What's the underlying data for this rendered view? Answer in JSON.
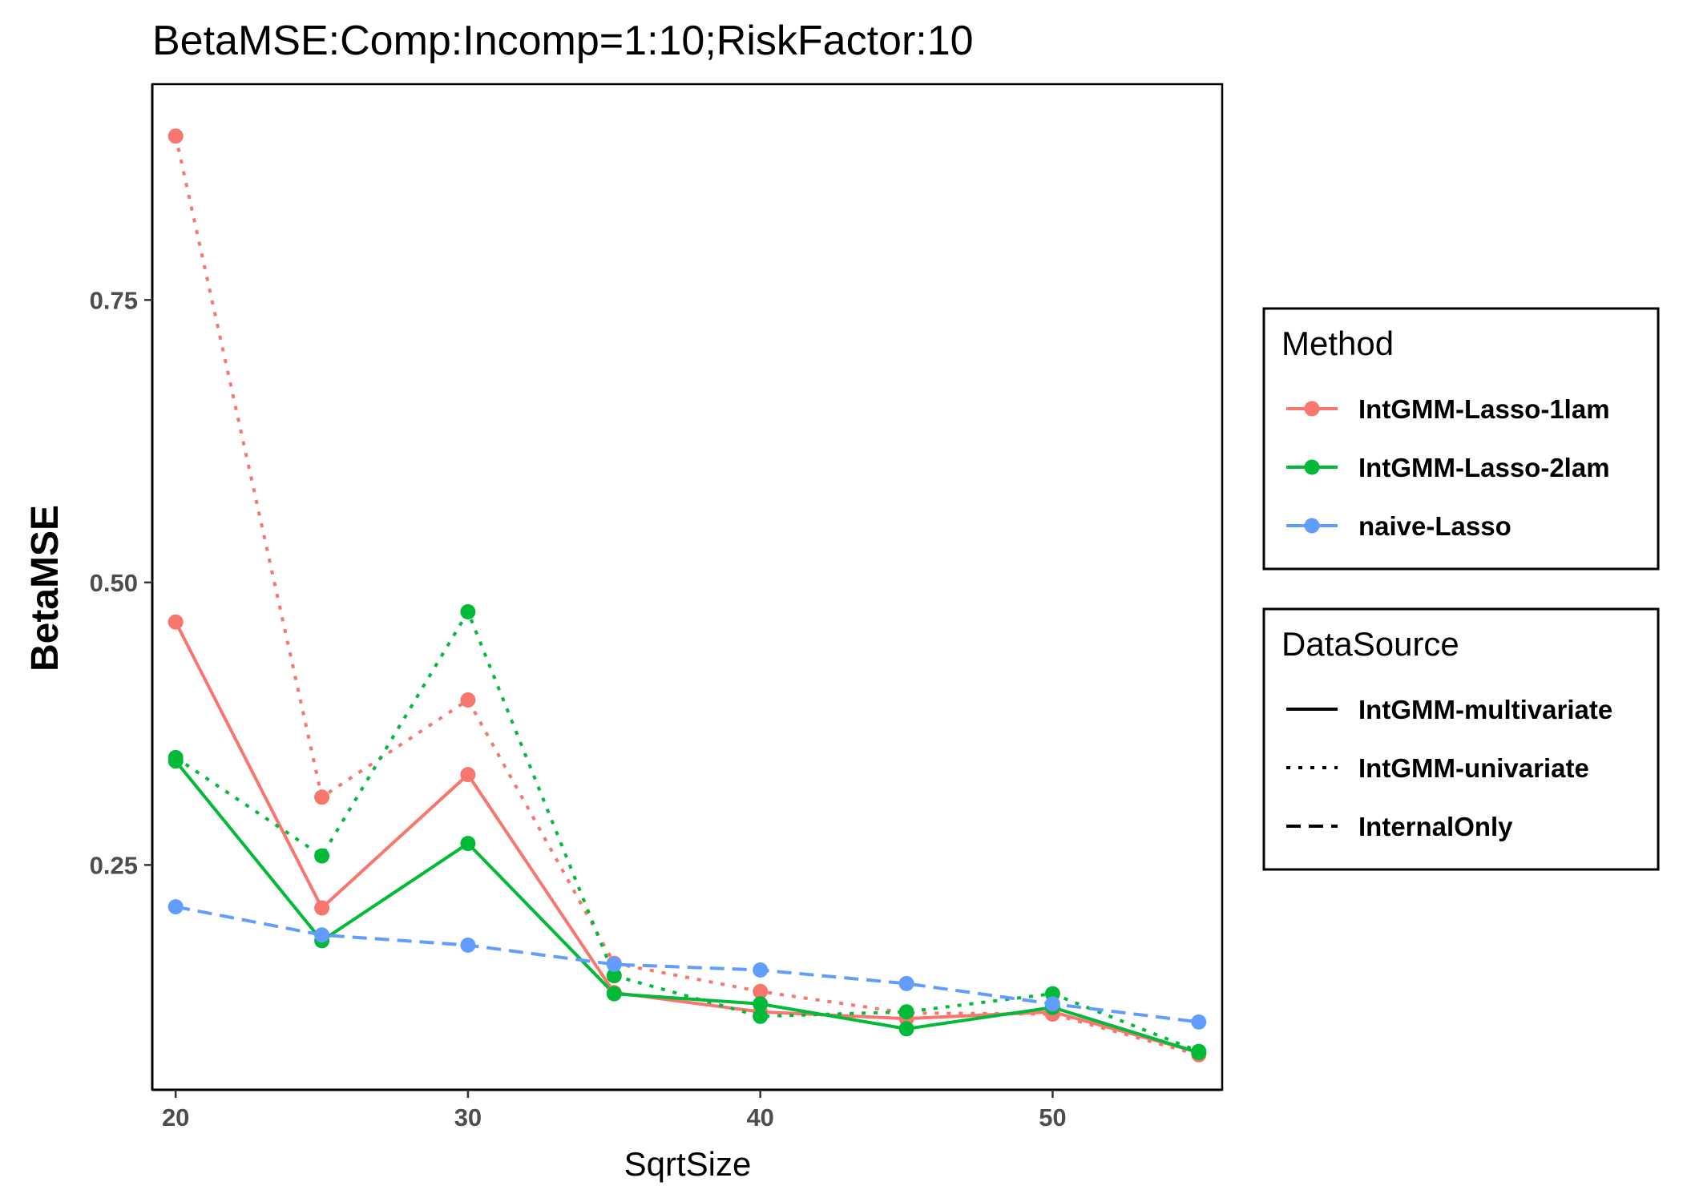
{
  "chart_data": {
    "type": "line",
    "title": "BetaMSE:Comp:Incomp=1:10;RiskFactor:10",
    "xlabel": "SqrtSize",
    "ylabel": "BetaMSE",
    "x": [
      20,
      25,
      30,
      35,
      40,
      45,
      50,
      55
    ],
    "xlim": [
      19.2,
      55.8
    ],
    "ylim": [
      0.051,
      0.941
    ],
    "x_ticks": [
      20,
      30,
      40,
      50
    ],
    "x_tick_labels": [
      "20",
      "30",
      "40",
      "50"
    ],
    "y_ticks": [
      0.25,
      0.5,
      0.75
    ],
    "y_tick_labels": [
      "0.25",
      "0.50",
      "0.75"
    ],
    "grid": false,
    "legend_position": "right",
    "legends": [
      {
        "title": "Method",
        "entries": [
          {
            "label": "IntGMM-Lasso-1lam",
            "color": "#F8766D"
          },
          {
            "label": "IntGMM-Lasso-2lam",
            "color": "#00BA38"
          },
          {
            "label": "naive-Lasso",
            "color": "#619CFF"
          }
        ]
      },
      {
        "title": "DataSource",
        "entries": [
          {
            "label": "IntGMM-multivariate",
            "linetype": "solid"
          },
          {
            "label": "IntGMM-univariate",
            "linetype": "dotted"
          },
          {
            "label": "InternalOnly",
            "linetype": "dashed"
          }
        ]
      }
    ],
    "series": [
      {
        "method": "IntGMM-Lasso-1lam",
        "source": "IntGMM-multivariate",
        "color": "#F8766D",
        "linetype": "solid",
        "values": [
          0.465,
          0.212,
          0.33,
          0.137,
          0.12,
          0.114,
          0.12,
          0.084
        ]
      },
      {
        "method": "IntGMM-Lasso-1lam",
        "source": "IntGMM-univariate",
        "color": "#F8766D",
        "linetype": "dotted",
        "values": [
          0.895,
          0.31,
          0.396,
          0.163,
          0.138,
          0.119,
          0.118,
          0.082
        ]
      },
      {
        "method": "IntGMM-Lasso-2lam",
        "source": "IntGMM-multivariate",
        "color": "#00BA38",
        "linetype": "solid",
        "values": [
          0.342,
          0.183,
          0.269,
          0.136,
          0.127,
          0.105,
          0.124,
          0.084
        ]
      },
      {
        "method": "IntGMM-Lasso-2lam",
        "source": "IntGMM-univariate",
        "color": "#00BA38",
        "linetype": "dotted",
        "values": [
          0.345,
          0.258,
          0.474,
          0.152,
          0.116,
          0.12,
          0.136,
          0.085
        ]
      },
      {
        "method": "naive-Lasso",
        "source": "InternalOnly",
        "color": "#619CFF",
        "linetype": "dashed",
        "values": [
          0.213,
          0.188,
          0.179,
          0.162,
          0.157,
          0.145,
          0.127,
          0.111
        ]
      }
    ]
  }
}
